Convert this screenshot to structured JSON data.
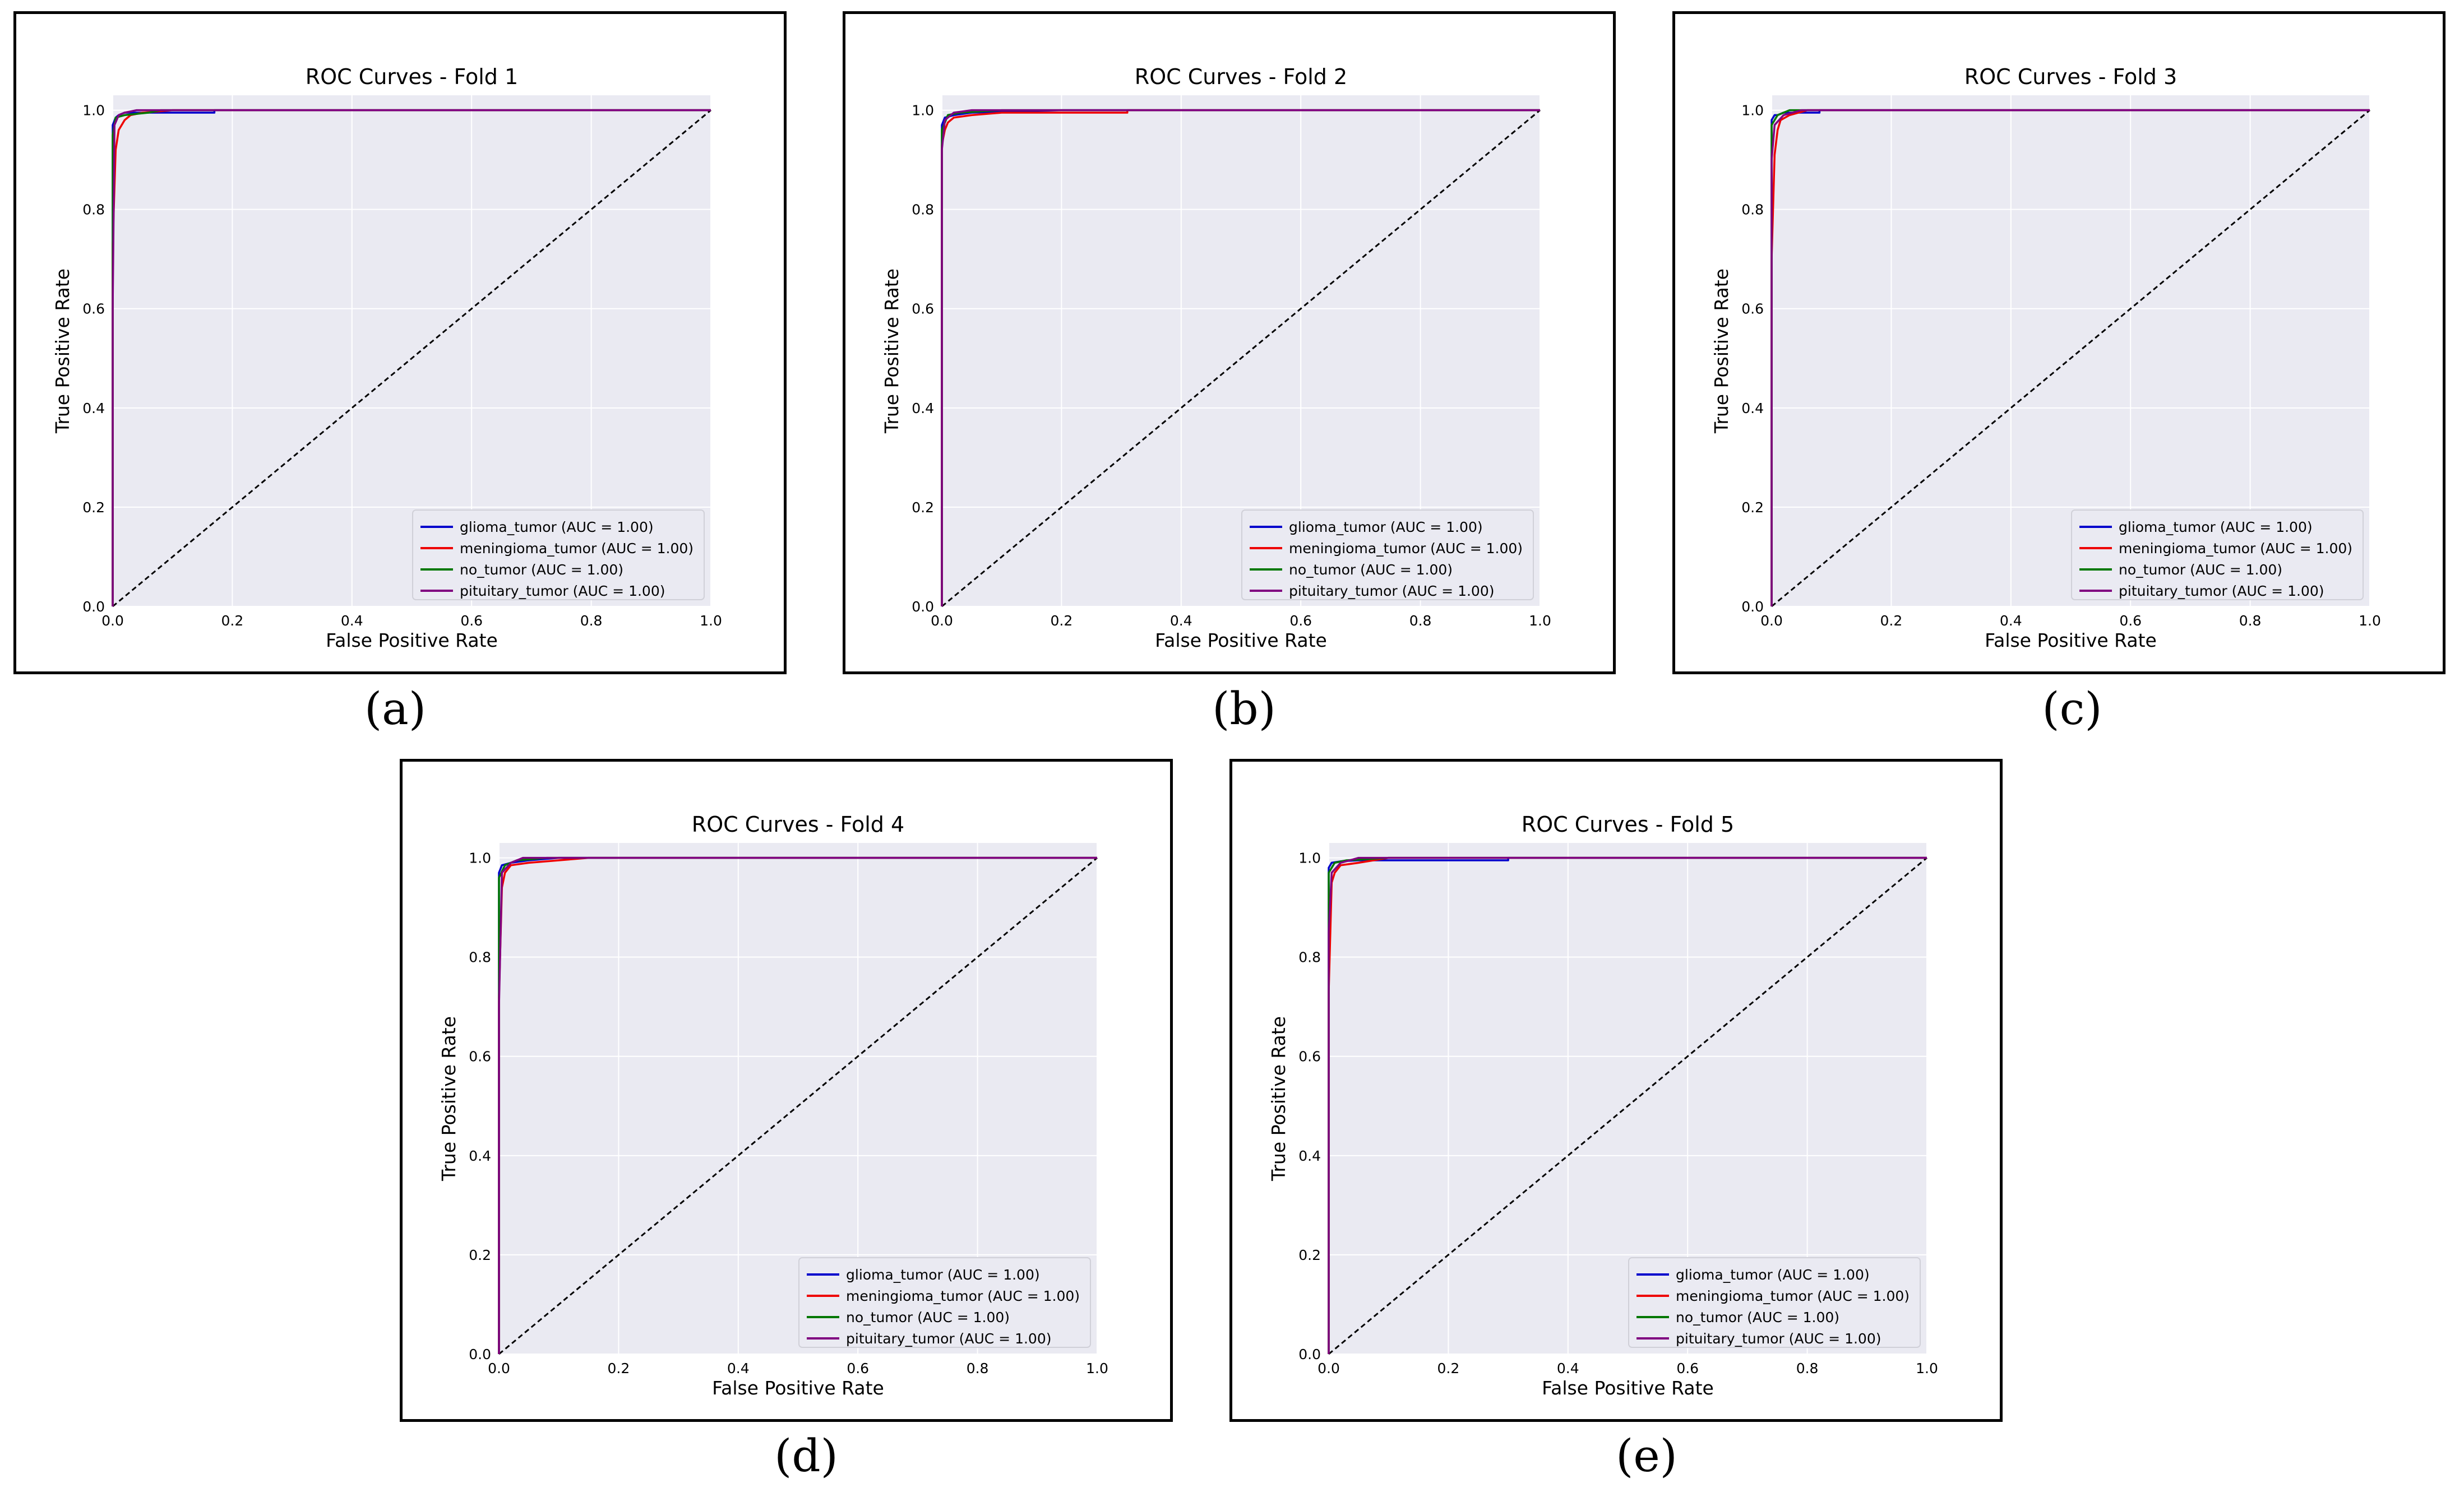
{
  "captions": [
    "(a)",
    "(b)",
    "(c)",
    "(d)",
    "(e)"
  ],
  "colors": {
    "plot_bg": "#eaeaf2",
    "grid": "#ffffff",
    "glioma_tumor": "#0000cc",
    "meningioma_tumor": "#ee0000",
    "no_tumor": "#007700",
    "pituitary_tumor": "#800080",
    "diagonal": "#000000"
  },
  "chart_data": [
    {
      "type": "line",
      "title": "ROC Curves - Fold 1",
      "xlabel": "False Positive Rate",
      "ylabel": "True Positive Rate",
      "xlim": [
        0,
        1
      ],
      "ylim": [
        0,
        1.03
      ],
      "xticks": [
        "0.0",
        "0.2",
        "0.4",
        "0.6",
        "0.8",
        "1.0"
      ],
      "yticks": [
        "0.0",
        "0.2",
        "0.4",
        "0.6",
        "0.8",
        "1.0"
      ],
      "grid": true,
      "legend_position": "lower-right",
      "diagonal": {
        "style": "dashed",
        "x": [
          0,
          1
        ],
        "y": [
          0,
          1
        ]
      },
      "series": [
        {
          "name": "glioma_tumor",
          "label": "glioma_tumor (AUC = 1.00)",
          "x": [
            0,
            0,
            0.005,
            0.01,
            0.02,
            0.17,
            0.17,
            1.0
          ],
          "y": [
            0,
            0.97,
            0.985,
            0.99,
            0.995,
            0.995,
            1.0,
            1.0
          ]
        },
        {
          "name": "meningioma_tumor",
          "label": "meningioma_tumor (AUC = 1.00)",
          "x": [
            0,
            0,
            0.005,
            0.01,
            0.02,
            0.03,
            0.05,
            0.1,
            1.0
          ],
          "y": [
            0,
            0.73,
            0.92,
            0.96,
            0.98,
            0.99,
            0.995,
            1.0,
            1.0
          ]
        },
        {
          "name": "no_tumor",
          "label": "no_tumor (AUC = 1.00)",
          "x": [
            0,
            0,
            0.005,
            0.02,
            0.06,
            0.08,
            1.0
          ],
          "y": [
            0,
            0.95,
            0.985,
            0.99,
            0.995,
            1.0,
            1.0
          ]
        },
        {
          "name": "pituitary_tumor",
          "label": "pituitary_tumor (AUC = 1.00)",
          "x": [
            0,
            0,
            0.003,
            0.01,
            0.02,
            0.04,
            1.0
          ],
          "y": [
            0,
            0.6,
            0.97,
            0.99,
            0.995,
            1.0,
            1.0
          ]
        }
      ]
    },
    {
      "type": "line",
      "title": "ROC Curves - Fold 2",
      "xlabel": "False Positive Rate",
      "ylabel": "True Positive Rate",
      "xlim": [
        0,
        1
      ],
      "ylim": [
        0,
        1.03
      ],
      "xticks": [
        "0.0",
        "0.2",
        "0.4",
        "0.6",
        "0.8",
        "1.0"
      ],
      "yticks": [
        "0.0",
        "0.2",
        "0.4",
        "0.6",
        "0.8",
        "1.0"
      ],
      "grid": true,
      "legend_position": "lower-right",
      "diagonal": {
        "style": "dashed",
        "x": [
          0,
          1
        ],
        "y": [
          0,
          1
        ]
      },
      "series": [
        {
          "name": "glioma_tumor",
          "label": "glioma_tumor (AUC = 1.00)",
          "x": [
            0,
            0,
            0.005,
            0.02,
            0.05,
            0.2,
            1.0
          ],
          "y": [
            0,
            0.97,
            0.985,
            0.99,
            0.995,
            1.0,
            1.0
          ]
        },
        {
          "name": "meningioma_tumor",
          "label": "meningioma_tumor (AUC = 1.00)",
          "x": [
            0,
            0,
            0.005,
            0.01,
            0.02,
            0.05,
            0.1,
            0.31,
            0.31,
            1.0
          ],
          "y": [
            0,
            0.93,
            0.96,
            0.975,
            0.985,
            0.99,
            0.995,
            0.995,
            1.0,
            1.0
          ]
        },
        {
          "name": "no_tumor",
          "label": "no_tumor (AUC = 1.00)",
          "x": [
            0,
            0,
            0.01,
            0.03,
            0.1,
            1.0
          ],
          "y": [
            0,
            0.96,
            0.99,
            0.995,
            1.0,
            1.0
          ]
        },
        {
          "name": "pituitary_tumor",
          "label": "pituitary_tumor (AUC = 1.00)",
          "x": [
            0,
            0,
            0.005,
            0.02,
            0.05,
            1.0
          ],
          "y": [
            0,
            0.92,
            0.98,
            0.995,
            1.0,
            1.0
          ]
        }
      ]
    },
    {
      "type": "line",
      "title": "ROC Curves - Fold 3",
      "xlabel": "False Positive Rate",
      "ylabel": "True Positive Rate",
      "xlim": [
        0,
        1
      ],
      "ylim": [
        0,
        1.03
      ],
      "xticks": [
        "0.0",
        "0.2",
        "0.4",
        "0.6",
        "0.8",
        "1.0"
      ],
      "yticks": [
        "0.0",
        "0.2",
        "0.4",
        "0.6",
        "0.8",
        "1.0"
      ],
      "grid": true,
      "legend_position": "lower-right",
      "diagonal": {
        "style": "dashed",
        "x": [
          0,
          1
        ],
        "y": [
          0,
          1
        ]
      },
      "series": [
        {
          "name": "glioma_tumor",
          "label": "glioma_tumor (AUC = 1.00)",
          "x": [
            0,
            0,
            0.005,
            0.01,
            0.02,
            0.08,
            0.08,
            1.0
          ],
          "y": [
            0,
            0.98,
            0.99,
            0.99,
            0.995,
            0.995,
            1.0,
            1.0
          ]
        },
        {
          "name": "meningioma_tumor",
          "label": "meningioma_tumor (AUC = 1.00)",
          "x": [
            0,
            0,
            0.005,
            0.01,
            0.015,
            0.03,
            0.06,
            1.0
          ],
          "y": [
            0,
            0.7,
            0.91,
            0.96,
            0.98,
            0.99,
            1.0,
            1.0
          ]
        },
        {
          "name": "no_tumor",
          "label": "no_tumor (AUC = 1.00)",
          "x": [
            0,
            0,
            0.01,
            0.03,
            1.0
          ],
          "y": [
            0,
            0.97,
            0.99,
            1.0,
            1.0
          ]
        },
        {
          "name": "pituitary_tumor",
          "label": "pituitary_tumor (AUC = 1.00)",
          "x": [
            0,
            0,
            0.005,
            0.02,
            0.05,
            1.0
          ],
          "y": [
            0,
            0.9,
            0.97,
            0.99,
            1.0,
            1.0
          ]
        }
      ]
    },
    {
      "type": "line",
      "title": "ROC Curves - Fold 4",
      "xlabel": "False Positive Rate",
      "ylabel": "True Positive Rate",
      "xlim": [
        0,
        1
      ],
      "ylim": [
        0,
        1.03
      ],
      "xticks": [
        "0.0",
        "0.2",
        "0.4",
        "0.6",
        "0.8",
        "1.0"
      ],
      "yticks": [
        "0.0",
        "0.2",
        "0.4",
        "0.6",
        "0.8",
        "1.0"
      ],
      "grid": true,
      "legend_position": "lower-right",
      "diagonal": {
        "style": "dashed",
        "x": [
          0,
          1
        ],
        "y": [
          0,
          1
        ]
      },
      "series": [
        {
          "name": "glioma_tumor",
          "label": "glioma_tumor (AUC = 1.00)",
          "x": [
            0,
            0,
            0.005,
            0.02,
            0.05,
            0.1,
            1.0
          ],
          "y": [
            0,
            0.97,
            0.985,
            0.99,
            0.995,
            1.0,
            1.0
          ]
        },
        {
          "name": "meningioma_tumor",
          "label": "meningioma_tumor (AUC = 1.00)",
          "x": [
            0,
            0,
            0.005,
            0.01,
            0.02,
            0.05,
            0.15,
            1.0
          ],
          "y": [
            0,
            0.72,
            0.94,
            0.97,
            0.985,
            0.99,
            1.0,
            1.0
          ]
        },
        {
          "name": "no_tumor",
          "label": "no_tumor (AUC = 1.00)",
          "x": [
            0,
            0,
            0.01,
            0.03,
            0.08,
            1.0
          ],
          "y": [
            0,
            0.96,
            0.985,
            0.995,
            1.0,
            1.0
          ]
        },
        {
          "name": "pituitary_tumor",
          "label": "pituitary_tumor (AUC = 1.00)",
          "x": [
            0,
            0,
            0.005,
            0.02,
            0.04,
            1.0
          ],
          "y": [
            0,
            0.7,
            0.97,
            0.99,
            1.0,
            1.0
          ]
        }
      ]
    },
    {
      "type": "line",
      "title": "ROC Curves - Fold 5",
      "xlabel": "False Positive Rate",
      "ylabel": "True Positive Rate",
      "xlim": [
        0,
        1
      ],
      "ylim": [
        0,
        1.03
      ],
      "xticks": [
        "0.0",
        "0.2",
        "0.4",
        "0.6",
        "0.8",
        "1.0"
      ],
      "yticks": [
        "0.0",
        "0.2",
        "0.4",
        "0.6",
        "0.8",
        "1.0"
      ],
      "grid": true,
      "legend_position": "lower-right",
      "diagonal": {
        "style": "dashed",
        "x": [
          0,
          1
        ],
        "y": [
          0,
          1
        ]
      },
      "series": [
        {
          "name": "glioma_tumor",
          "label": "glioma_tumor (AUC = 1.00)",
          "x": [
            0,
            0,
            0.005,
            0.02,
            0.05,
            0.3,
            0.3,
            1.0
          ],
          "y": [
            0,
            0.98,
            0.99,
            0.993,
            0.995,
            0.995,
            1.0,
            1.0
          ]
        },
        {
          "name": "meningioma_tumor",
          "label": "meningioma_tumor (AUC = 1.00)",
          "x": [
            0,
            0,
            0.005,
            0.01,
            0.02,
            0.05,
            0.1,
            1.0
          ],
          "y": [
            0,
            0.73,
            0.95,
            0.97,
            0.985,
            0.99,
            1.0,
            1.0
          ]
        },
        {
          "name": "no_tumor",
          "label": "no_tumor (AUC = 1.00)",
          "x": [
            0,
            0,
            0.01,
            0.03,
            0.1,
            1.0
          ],
          "y": [
            0,
            0.97,
            0.99,
            0.995,
            1.0,
            1.0
          ]
        },
        {
          "name": "pituitary_tumor",
          "label": "pituitary_tumor (AUC = 1.00)",
          "x": [
            0,
            0,
            0.005,
            0.02,
            0.05,
            1.0
          ],
          "y": [
            0,
            0.85,
            0.97,
            0.99,
            1.0,
            1.0
          ]
        }
      ]
    }
  ]
}
